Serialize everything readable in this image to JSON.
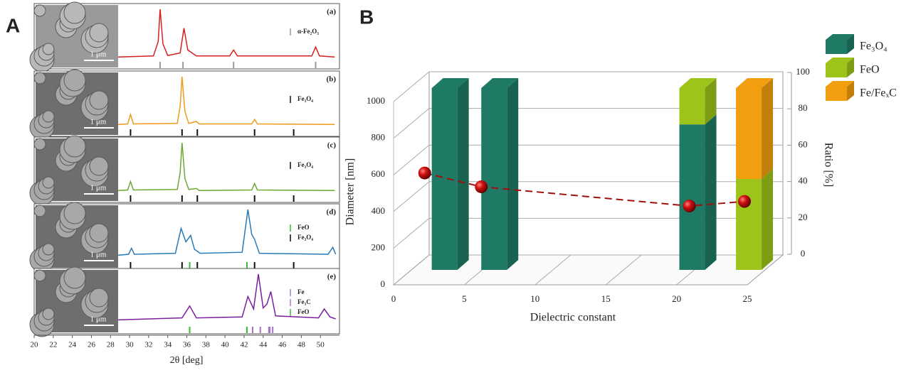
{
  "chart_data": [
    {
      "type": "xrd",
      "panel_label": "A",
      "xlabel": "2θ [deg]",
      "xlim": [
        20,
        52
      ],
      "xticks": [
        20,
        22,
        24,
        26,
        28,
        30,
        32,
        34,
        36,
        38,
        40,
        42,
        44,
        46,
        48,
        50
      ],
      "ylim": [
        0,
        100
      ],
      "scale_bar": "1 μm",
      "series": [
        {
          "name": "(a)",
          "color": "#d62020",
          "x": [
            28.8,
            32.5,
            33.0,
            33.2,
            33.5,
            34.0,
            35.3,
            35.7,
            36.1,
            37.0,
            40.5,
            40.9,
            41.3,
            49.1,
            49.5,
            49.9,
            51.5
          ],
          "values": [
            4,
            6,
            35,
            100,
            30,
            7,
            12,
            62,
            18,
            6,
            6,
            18,
            6,
            6,
            24,
            6,
            4
          ],
          "references": [
            {
              "name": "α-Fe₂O₃",
              "color": "#999999",
              "positions": [
                33.2,
                35.6,
                40.9,
                49.5
              ]
            }
          ]
        },
        {
          "name": "(b)",
          "color": "#ef9a1a",
          "x": [
            28.8,
            29.8,
            30.1,
            30.4,
            35.0,
            35.3,
            35.5,
            35.8,
            36.2,
            37.0,
            37.3,
            42.8,
            43.1,
            43.4,
            51.5
          ],
          "values": [
            4,
            5,
            24,
            5,
            6,
            40,
            100,
            30,
            6,
            10,
            5,
            5,
            14,
            5,
            4
          ],
          "references": [
            {
              "name": "Fe₃O₄",
              "color": "#111111",
              "positions": [
                30.1,
                35.5,
                37.1,
                43.1,
                47.2
              ]
            }
          ]
        },
        {
          "name": "(c)",
          "color": "#6ea832",
          "x": [
            28.8,
            29.8,
            30.1,
            30.4,
            35.0,
            35.3,
            35.5,
            35.8,
            36.2,
            37.0,
            37.3,
            42.8,
            43.1,
            43.4,
            51.5
          ],
          "values": [
            4,
            5,
            22,
            5,
            6,
            40,
            100,
            28,
            6,
            8,
            4,
            5,
            18,
            5,
            4
          ],
          "references": [
            {
              "name": "Fe₃O₄",
              "color": "#111111",
              "positions": [
                30.1,
                35.5,
                37.1,
                43.1,
                47.2
              ]
            }
          ]
        },
        {
          "name": "(d)",
          "color": "#2a7bb5",
          "x": [
            28.8,
            29.9,
            30.2,
            30.5,
            34.8,
            35.4,
            35.9,
            36.4,
            36.8,
            37.4,
            41.8,
            42.4,
            42.8,
            43.1,
            43.6,
            50.8,
            51.3,
            51.6
          ],
          "values": [
            8,
            10,
            22,
            10,
            12,
            62,
            35,
            48,
            20,
            12,
            14,
            100,
            50,
            40,
            12,
            10,
            24,
            10
          ],
          "references": [
            {
              "name": "FeO",
              "color": "#33bb33",
              "positions": [
                36.3,
                42.3
              ]
            },
            {
              "name": "Fe₃O₄",
              "color": "#111111",
              "positions": [
                30.1,
                35.5,
                37.1,
                43.1,
                47.2
              ]
            }
          ]
        },
        {
          "name": "(e)",
          "color": "#7a1fa0",
          "x": [
            28.8,
            35.5,
            36.3,
            37.0,
            41.8,
            42.4,
            43.0,
            43.5,
            44.0,
            44.4,
            44.8,
            45.3,
            49.8,
            50.4,
            51.0,
            51.6
          ],
          "values": [
            8,
            12,
            36,
            12,
            14,
            55,
            30,
            100,
            32,
            40,
            65,
            16,
            12,
            30,
            14,
            10
          ],
          "references": [
            {
              "name": "Fe",
              "color": "#8a8ad0",
              "positions": [
                44.7
              ]
            },
            {
              "name": "Fe₃C",
              "color": "#b070c8",
              "positions": [
                42.9,
                43.7,
                44.6,
                45.0
              ]
            },
            {
              "name": "FeO",
              "color": "#33bb33",
              "positions": [
                36.3,
                42.3
              ]
            }
          ]
        }
      ]
    },
    {
      "type": "bar3d",
      "panel_label": "B",
      "xlabel": "Dielectric constant",
      "ylabel": "Diameter [nm]",
      "y2label": "Ratio [%]",
      "xlim": [
        0,
        25
      ],
      "xticks": [
        0,
        5,
        10,
        15,
        20,
        25
      ],
      "ylim": [
        0,
        1000
      ],
      "yticks": [
        0,
        200,
        400,
        600,
        800,
        1000
      ],
      "y2lim": [
        0,
        100
      ],
      "y2ticks": [
        0,
        20,
        40,
        60,
        80,
        100
      ],
      "bar_x": [
        3,
        6.5,
        20.5,
        24.5
      ],
      "series": [
        {
          "name": "Fe₃O₄",
          "color": "#1e7a64",
          "axis": "y2",
          "values": [
            100,
            100,
            80,
            0
          ]
        },
        {
          "name": "FeO",
          "color": "#9dc41a",
          "axis": "y2",
          "values": [
            0,
            0,
            20,
            50
          ]
        },
        {
          "name": "Fe/FeₓC",
          "color": "#f29f0f",
          "axis": "y2",
          "values": [
            0,
            0,
            0,
            50
          ]
        }
      ],
      "diameter": {
        "color": "#a01010",
        "x": [
          2.2,
          6.2,
          20.9,
          24.8
        ],
        "values": [
          610,
          535,
          430,
          455
        ]
      }
    }
  ]
}
